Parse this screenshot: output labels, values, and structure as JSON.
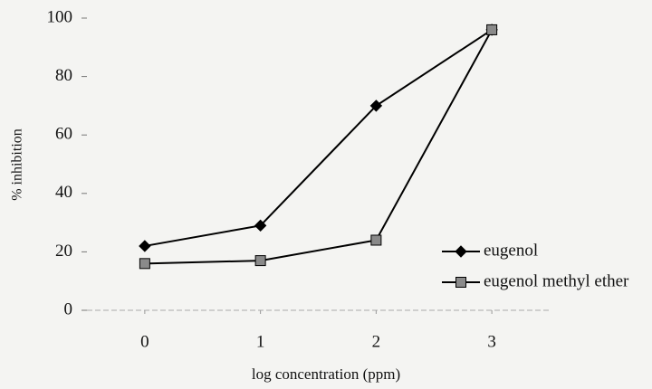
{
  "chart_data": {
    "type": "line",
    "xlabel": "log concentration (ppm)",
    "ylabel": "% inhibition",
    "x": [
      0,
      1,
      2,
      3
    ],
    "xlim": [
      -0.5,
      3.5
    ],
    "xticks": [
      0,
      1,
      2,
      3
    ],
    "ylim": [
      0,
      100
    ],
    "yticks": [
      0,
      20,
      40,
      60,
      80,
      100
    ],
    "legend": "lower right",
    "series": [
      {
        "name": "eugenol",
        "color": "#000000",
        "marker": "diamond",
        "marker_fill": "#000000",
        "values": [
          22,
          29,
          70,
          96
        ]
      },
      {
        "name": "eugenol methyl ether",
        "color": "#000000",
        "marker": "square",
        "marker_fill": "#8a8a8a",
        "values": [
          16,
          17,
          24,
          96
        ]
      }
    ]
  }
}
